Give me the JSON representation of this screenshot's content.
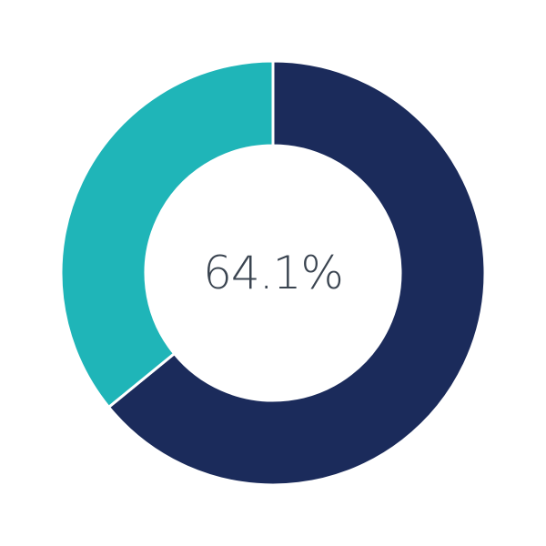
{
  "chart_data": {
    "type": "pie",
    "variant": "donut",
    "center_label": "64.1%",
    "slices": [
      {
        "value": 64.1,
        "color": "#1b2b5b"
      },
      {
        "value": 35.9,
        "color": "#1fb5b8"
      }
    ],
    "start_angle": "top",
    "direction": "clockwise",
    "legend": "none"
  }
}
